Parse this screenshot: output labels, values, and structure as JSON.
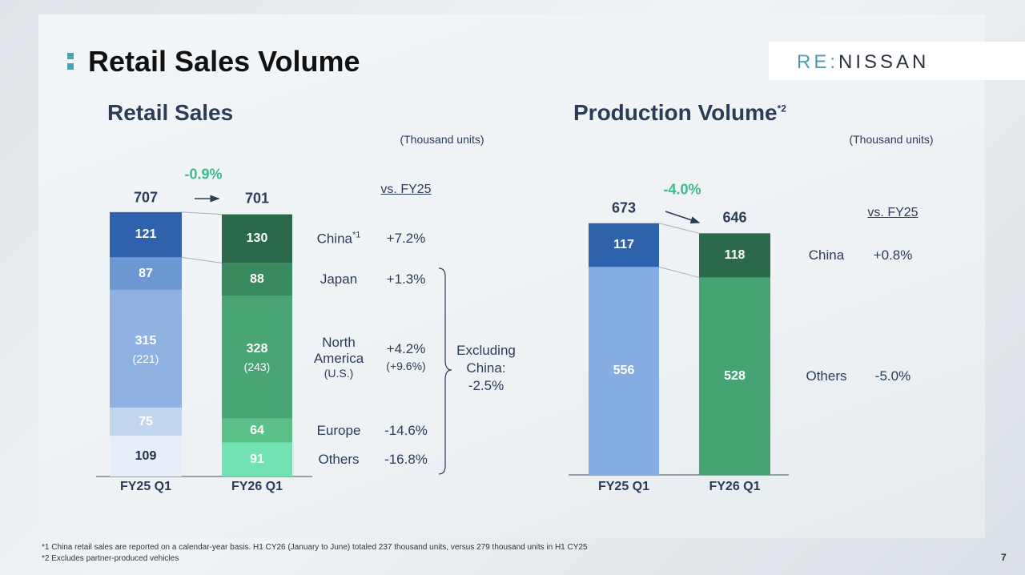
{
  "header": {
    "title": "Retail Sales Volume",
    "logo": {
      "prefix": "RE:",
      "name": "NISSAN"
    }
  },
  "chart_data": [
    {
      "type": "stacked_bar",
      "title": "Retail Sales",
      "unit": "(Thousand units)",
      "categories": [
        "FY25 Q1",
        "FY26 Q1"
      ],
      "totals": [
        707,
        701
      ],
      "change": "-0.9%",
      "comparison_header": "vs. FY25",
      "series": [
        {
          "name": "China",
          "name_note": "*1",
          "values": [
            121,
            130
          ],
          "color": [
            "#2f62ad",
            "#2a6a4b"
          ],
          "label_color": [
            "#ffffff",
            "#ffffff"
          ],
          "change": "+7.2%"
        },
        {
          "name": "Japan",
          "values": [
            87,
            88
          ],
          "color": [
            "#6e98d4",
            "#3a8a5f"
          ],
          "label_color": [
            "#ffffff",
            "#ffffff"
          ],
          "change": "+1.3%"
        },
        {
          "name": "North America",
          "name_note": "(U.S.)",
          "values": [
            315,
            328
          ],
          "sub_value_labels": [
            "(221)",
            "(243)"
          ],
          "color": [
            "#8fb2e2",
            "#4aa575"
          ],
          "label_color": [
            "#ffffff",
            "#ffffff"
          ],
          "change": "+4.2%",
          "sub_change": "(+9.6%)"
        },
        {
          "name": "Europe",
          "values": [
            75,
            64
          ],
          "color": [
            "#c3d6ef",
            "#5bc189"
          ],
          "label_color": [
            "#ffffff",
            "#ffffff"
          ],
          "change": "-14.6%"
        },
        {
          "name": "Others",
          "values": [
            109,
            91
          ],
          "color": [
            "#e6eef9",
            "#72e2b2"
          ],
          "label_color": [
            "#1f2f4a",
            "#ffffff"
          ],
          "change": "-16.8%"
        }
      ],
      "bracket_note": "Excluding China: -2.5%"
    },
    {
      "type": "stacked_bar",
      "title": "Production Volume",
      "title_note": "*2",
      "unit": "(Thousand units)",
      "categories": [
        "FY25 Q1",
        "FY26 Q1"
      ],
      "totals": [
        673,
        646
      ],
      "change": "-4.0%",
      "comparison_header": "vs. FY25",
      "series": [
        {
          "name": "China",
          "values": [
            117,
            118
          ],
          "color": [
            "#2f62ad",
            "#2a6a4b"
          ],
          "label_color": [
            "#ffffff",
            "#ffffff"
          ],
          "change": "+0.8%"
        },
        {
          "name": "Others",
          "values": [
            556,
            528
          ],
          "color": [
            "#86ade2",
            "#45a374"
          ],
          "label_color": [
            "#ffffff",
            "#ffffff"
          ],
          "change": "-5.0%"
        }
      ]
    }
  ],
  "footnotes": [
    "*1 China retail sales are reported on a calendar-year basis. H1 CY26 (January to June) totaled 237 thousand units, versus 279 thousand units in H1 CY25",
    "*2 Excludes partner-produced vehicles"
  ],
  "page_number": "7"
}
